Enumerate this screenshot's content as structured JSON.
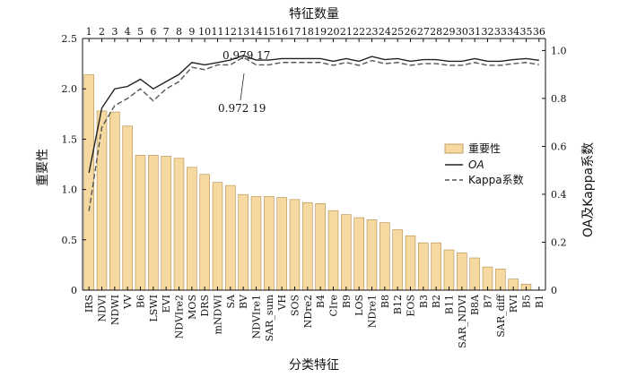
{
  "chart_data": {
    "type": "bar",
    "title": "",
    "top_axis_label": "特征数量",
    "xlabel": "分类特征",
    "ylabel_left": "重要性",
    "ylabel_right": "OA及Kappa系数",
    "ylim_left": [
      0,
      2.5
    ],
    "ylim_right": [
      0,
      1.05
    ],
    "yticks_left": [
      "0",
      "0.5",
      "1.0",
      "1.5",
      "2.0",
      "2.5"
    ],
    "yticks_right": [
      "0",
      "0.2",
      "0.4",
      "0.6",
      "0.8",
      "1.0"
    ],
    "categories": [
      "IRS",
      "NDVI",
      "NDWI",
      "VV",
      "B6",
      "LSWI",
      "EVI",
      "NDVIre2",
      "MOS",
      "DRS",
      "mNDWI",
      "SA",
      "BV",
      "NDVIre1",
      "SAR_sum",
      "VH",
      "SOS",
      "NDre2",
      "B4",
      "CIre",
      "B9",
      "LOS",
      "NDre1",
      "B8",
      "B12",
      "EOS",
      "B3",
      "B2",
      "B11",
      "SAR_NDVI",
      "B8A",
      "B7",
      "SAR_diff",
      "RVI",
      "B5",
      "B1"
    ],
    "top_ticks": [
      "1",
      "2",
      "3",
      "4",
      "5",
      "6",
      "7",
      "8",
      "9",
      "10",
      "11",
      "12",
      "13",
      "14",
      "15",
      "16",
      "17",
      "18",
      "19",
      "20",
      "21",
      "22",
      "23",
      "24",
      "25",
      "26",
      "27",
      "28",
      "29",
      "30",
      "31",
      "32",
      "33",
      "34",
      "35",
      "36"
    ],
    "series": [
      {
        "name": "重要性",
        "kind": "bar",
        "color": "#f5d9a0",
        "values": [
          2.14,
          1.78,
          1.77,
          1.63,
          1.34,
          1.34,
          1.33,
          1.31,
          1.22,
          1.15,
          1.07,
          1.04,
          0.95,
          0.93,
          0.93,
          0.92,
          0.9,
          0.87,
          0.86,
          0.79,
          0.75,
          0.72,
          0.7,
          0.67,
          0.6,
          0.54,
          0.47,
          0.47,
          0.4,
          0.37,
          0.32,
          0.23,
          0.21,
          0.11,
          0.06,
          0.0
        ]
      },
      {
        "name": "OA",
        "kind": "line",
        "color": "#222222",
        "values": [
          0.49,
          0.76,
          0.84,
          0.85,
          0.88,
          0.84,
          0.87,
          0.9,
          0.95,
          0.94,
          0.95,
          0.96,
          0.979,
          0.96,
          0.96,
          0.966,
          0.966,
          0.966,
          0.966,
          0.955,
          0.966,
          0.955,
          0.975,
          0.962,
          0.966,
          0.955,
          0.962,
          0.962,
          0.955,
          0.955,
          0.966,
          0.955,
          0.955,
          0.962,
          0.966,
          0.959
        ]
      },
      {
        "name": "Kappa系数",
        "kind": "line",
        "color": "#555555",
        "values": [
          0.33,
          0.68,
          0.77,
          0.8,
          0.84,
          0.79,
          0.84,
          0.87,
          0.93,
          0.92,
          0.94,
          0.94,
          0.972,
          0.94,
          0.94,
          0.95,
          0.95,
          0.95,
          0.95,
          0.938,
          0.95,
          0.938,
          0.958,
          0.945,
          0.95,
          0.938,
          0.945,
          0.945,
          0.938,
          0.938,
          0.95,
          0.938,
          0.938,
          0.945,
          0.95,
          0.941
        ]
      }
    ],
    "annotations": [
      {
        "text": "0.979 17",
        "x": 13
      },
      {
        "text": "0.972 19",
        "x": 13
      }
    ],
    "legend": {
      "placement": "right-middle",
      "items": [
        "重要性",
        "OA",
        "Kappa系数"
      ]
    }
  }
}
